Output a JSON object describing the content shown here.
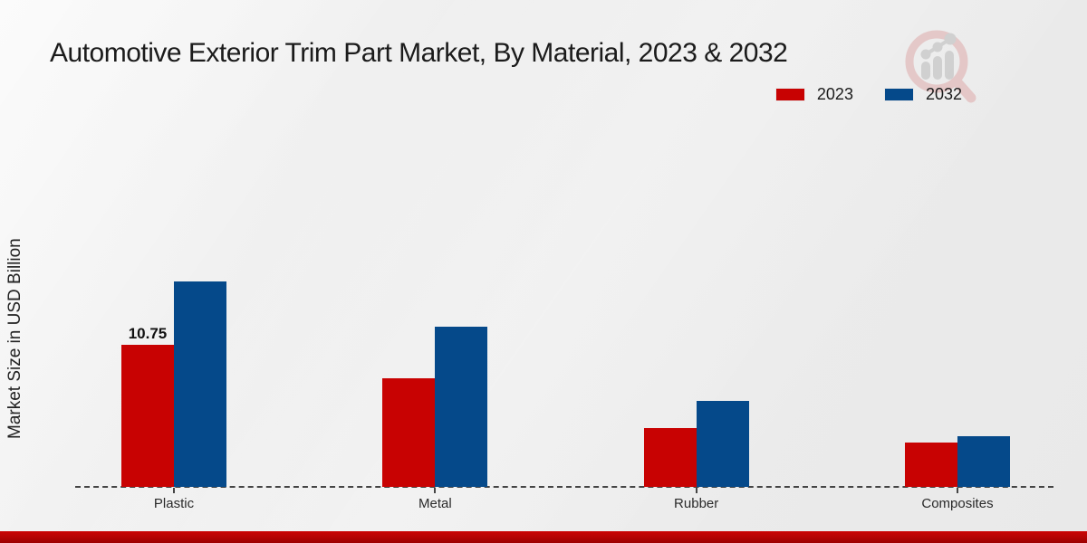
{
  "chart_data": {
    "type": "bar",
    "title": "Automotive Exterior Trim Part Market, By Material, 2023 & 2032",
    "ylabel": "Market Size in USD Billion",
    "xlabel": "",
    "categories": [
      "Plastic",
      "Metal",
      "Rubber",
      "Composites"
    ],
    "series": [
      {
        "name": "2023",
        "color": "#c80202",
        "values": [
          10.75,
          8.2,
          4.45,
          3.35
        ]
      },
      {
        "name": "2032",
        "color": "#05498a",
        "values": [
          15.5,
          12.1,
          6.5,
          3.8
        ]
      }
    ],
    "data_labels": [
      {
        "category": "Plastic",
        "series": "2023",
        "text": "10.75"
      }
    ],
    "ylim": [
      0,
      17
    ],
    "grid": "off",
    "y_axis_ticks": "hidden",
    "baseline_style": "dashed",
    "legend_position": "top-right"
  },
  "watermark_icon": "magnifier-growth-chart-logo",
  "footer": {
    "accent_color": "#b30303"
  }
}
